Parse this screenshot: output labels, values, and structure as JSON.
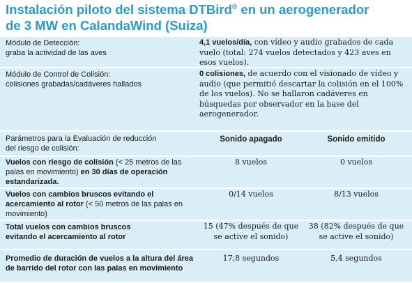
{
  "title": {
    "line1_pre": "Instalación piloto del sistema DTBird",
    "reg": "®",
    "line1_post": " en un aerogenerador",
    "line2": "de 3 MW en CalandaWind (Suiza)"
  },
  "rows": {
    "detection": {
      "label_line1": "Módulo de Detección:",
      "label_line2": "graba la actividad de las aves",
      "value_bold": "4,1 vuelos/día,",
      "value_rest": " con vídeo y audio grabados de cada vuelo (total: 274 vuelos detectados y 423 aves en esos vuelos)."
    },
    "collision_control": {
      "label_line1": "Módulo de Control de Colisión:",
      "label_line2": "colisiones grabadas/cadáveres hallados",
      "value_bold": "0 colisiones,",
      "value_rest": " de acuerdo con el visionado de vídeo y audio (que permitió descartar la colisión en el 100% de los vuelos). No se hallaron cadáveres en búsquedas por observador en la base del aerogenerador."
    },
    "parameters": {
      "label_line1": "Parámetros para la Evaluación de reducción",
      "label_line2": "del riesgo de colisión:",
      "col1_header": "Sonido apagado",
      "col2_header": "Sonido emitido"
    },
    "risk_flights": {
      "label_bold1": "Vuelos con riesgo de colisión",
      "label_plain1": " (< 25 metros de las palas en movimiento) ",
      "label_bold2": "en 30 días de operación estandarizada.",
      "col1": "8 vuelos",
      "col2": "0 vuelos"
    },
    "abrupt_changes": {
      "label_bold": "Vuelos con cambios bruscos evitando el acercamiento al rotor",
      "label_plain": " (< 50 metros de las palas en movimiento)",
      "col1": "0/14 vuelos",
      "col2": "8/13 vuelos"
    },
    "total_abrupt": {
      "label_line1": "Total vuelos con cambios bruscos",
      "label_line2": "evitando el acercamiento al rotor",
      "col1": "15 (47% después de que se active el sonido)",
      "col2": "38 (82% después de que se active el sonido)"
    },
    "duration": {
      "label_line1": "Promedio de duración de vuelos a la altura del área",
      "label_line2": "de barrido del rotor con las palas en movimiento",
      "col1": "17,8 segundos",
      "col2": "5,4 segundos"
    }
  }
}
